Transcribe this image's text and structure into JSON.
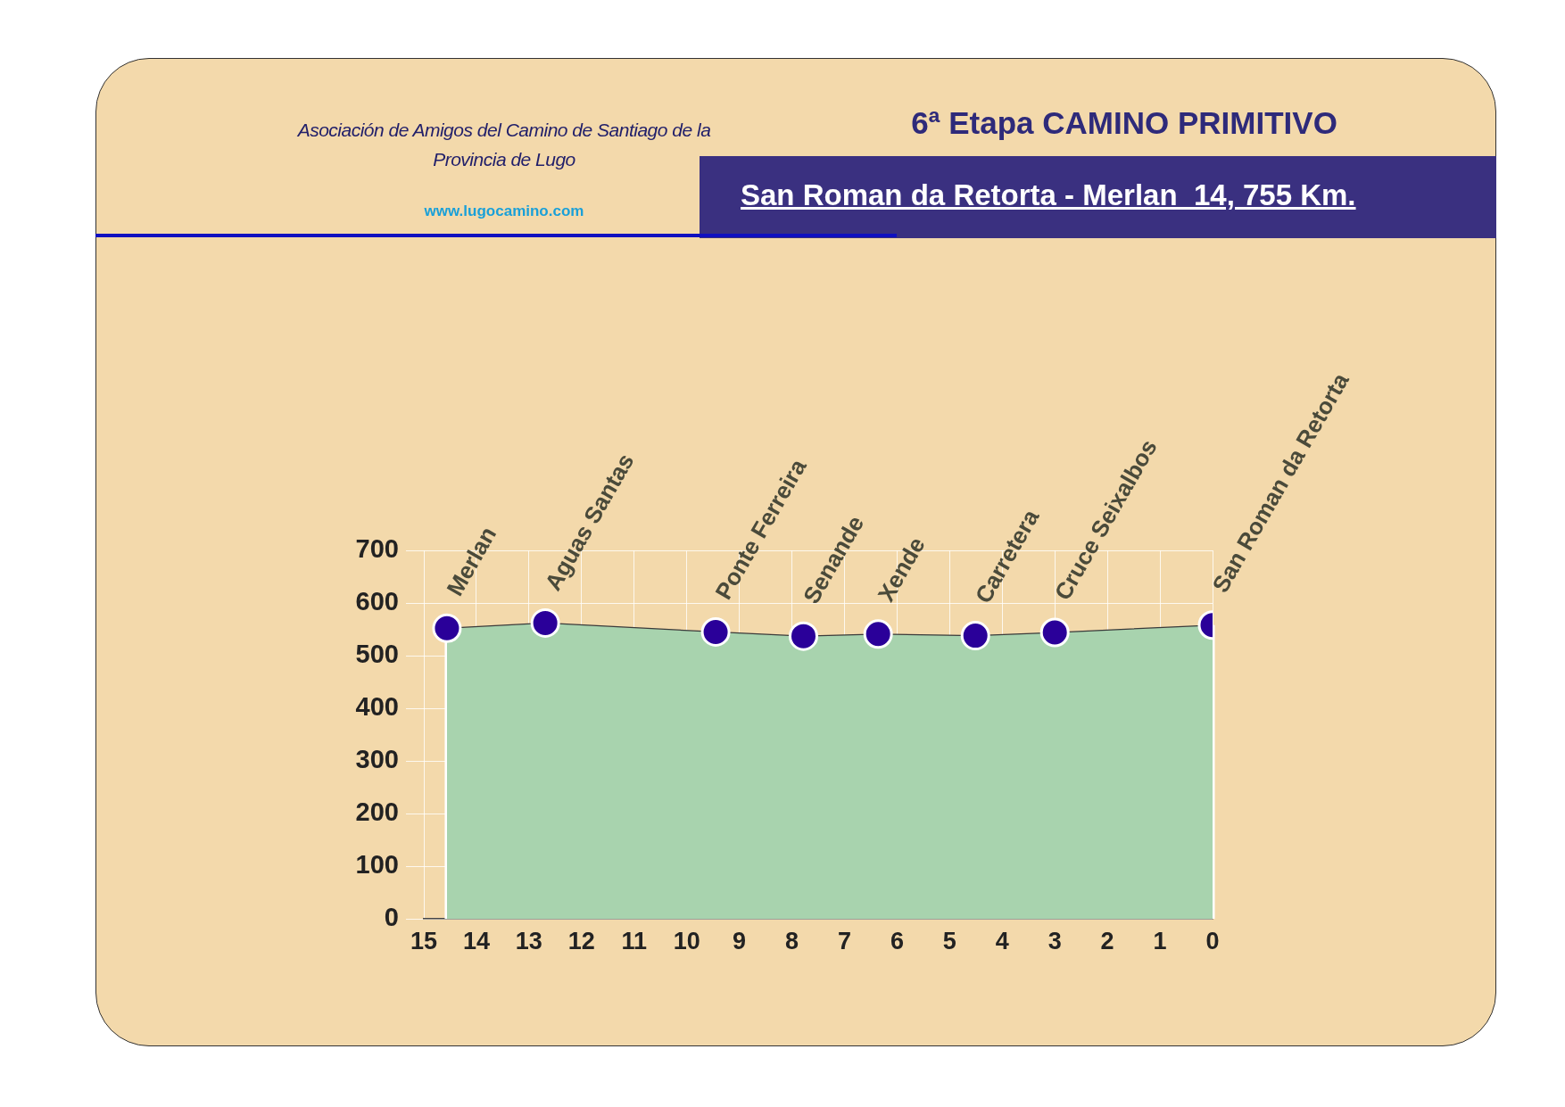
{
  "chart_data": {
    "type": "area",
    "title": "6ª Etapa CAMINO PRIMITIVO",
    "subtitle": "San Roman da Retorta - Merlan  14, 755 Km.",
    "x": [
      14.56,
      12.69,
      9.45,
      7.78,
      6.36,
      4.51,
      3.0,
      0
    ],
    "series": [
      {
        "color": "#a8d3ae",
        "values": [
          552,
          562,
          545,
          537,
          541,
          538,
          544,
          558
        ]
      }
    ],
    "xlim": [
      15,
      0
    ],
    "xticks": [
      15,
      14,
      13,
      12,
      11,
      10,
      9,
      8,
      7,
      6,
      5,
      4,
      3,
      2,
      1,
      0
    ],
    "ylim": [
      0,
      700
    ],
    "yticks": [
      0,
      100,
      200,
      300,
      400,
      500,
      600,
      700
    ],
    "grid": true,
    "legend": false,
    "marker": "circle",
    "annotations": [
      "Asociación de Amigos del Camino de Santiago de la Provincia de Lugo",
      "www.lugocamino.com",
      {
        "text": "Merlan",
        "x": 14.56,
        "y": 552
      },
      {
        "text": "Aguas Santas",
        "x": 12.69,
        "y": 562
      },
      {
        "text": "Ponte Ferreira",
        "x": 9.45,
        "y": 545
      },
      {
        "text": "Senande",
        "x": 7.78,
        "y": 537
      },
      {
        "text": "Xende",
        "x": 6.36,
        "y": 541
      },
      {
        "text": "Carretera",
        "x": 4.51,
        "y": 538
      },
      {
        "text": "Cruce Seixalbos",
        "x": 3.0,
        "y": 544
      },
      {
        "text": "San Roman da Retorta",
        "x": 0,
        "y": 558
      }
    ]
  }
}
